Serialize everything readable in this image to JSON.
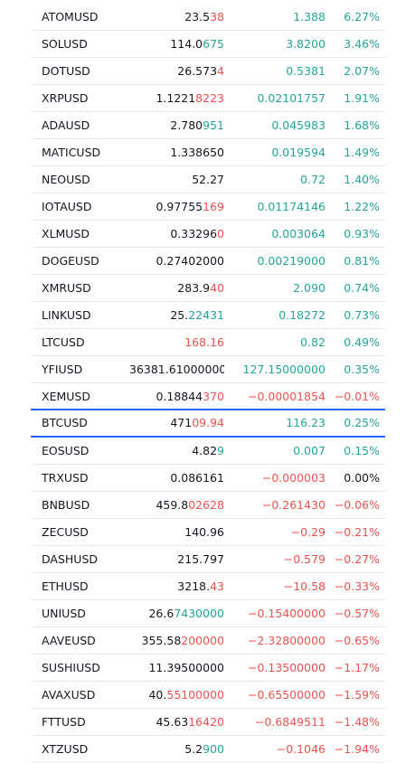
{
  "colors": {
    "up": "#26a69a",
    "down": "#ef5350",
    "neutral": "#131722",
    "highlight_border": "#2962ff"
  },
  "rows": [
    {
      "symbol": "ATOMUSD",
      "last_base": "23.5",
      "last_hl": "38",
      "hl_dir": "down",
      "change": "1.388",
      "change_pct": "6.27%",
      "dir": "up"
    },
    {
      "symbol": "SOLUSD",
      "last_base": "114.0",
      "last_hl": "675",
      "hl_dir": "up",
      "change": "3.8200",
      "change_pct": "3.46%",
      "dir": "up"
    },
    {
      "symbol": "DOTUSD",
      "last_base": "26.573",
      "last_hl": "4",
      "hl_dir": "down",
      "change": "0.5381",
      "change_pct": "2.07%",
      "dir": "up"
    },
    {
      "symbol": "XRPUSD",
      "last_base": "1.1221",
      "last_hl": "8223",
      "hl_dir": "down",
      "change": "0.02101757",
      "change_pct": "1.91%",
      "dir": "up"
    },
    {
      "symbol": "ADAUSD",
      "last_base": "2.780",
      "last_hl": "951",
      "hl_dir": "up",
      "change": "0.045983",
      "change_pct": "1.68%",
      "dir": "up"
    },
    {
      "symbol": "MATICUSD",
      "last_base": "1.338650",
      "last_hl": "",
      "hl_dir": "none",
      "change": "0.019594",
      "change_pct": "1.49%",
      "dir": "up"
    },
    {
      "symbol": "NEOUSD",
      "last_base": "52.27",
      "last_hl": "",
      "hl_dir": "none",
      "change": "0.72",
      "change_pct": "1.40%",
      "dir": "up"
    },
    {
      "symbol": "IOTAUSD",
      "last_base": "0.97755",
      "last_hl": "169",
      "hl_dir": "down",
      "change": "0.01174146",
      "change_pct": "1.22%",
      "dir": "up"
    },
    {
      "symbol": "XLMUSD",
      "last_base": "0.33296",
      "last_hl": "0",
      "hl_dir": "down",
      "change": "0.003064",
      "change_pct": "0.93%",
      "dir": "up"
    },
    {
      "symbol": "DOGEUSD",
      "last_base": "0.27402000",
      "last_hl": "",
      "hl_dir": "none",
      "change": "0.00219000",
      "change_pct": "0.81%",
      "dir": "up"
    },
    {
      "symbol": "XMRUSD",
      "last_base": "283.9",
      "last_hl": "40",
      "hl_dir": "down",
      "change": "2.090",
      "change_pct": "0.74%",
      "dir": "up"
    },
    {
      "symbol": "LINKUSD",
      "last_base": "25.",
      "last_hl": "22431",
      "hl_dir": "up",
      "change": "0.18272",
      "change_pct": "0.73%",
      "dir": "up"
    },
    {
      "symbol": "LTCUSD",
      "last_base": "",
      "last_hl": "168.16",
      "hl_dir": "down",
      "change": "0.82",
      "change_pct": "0.49%",
      "dir": "up"
    },
    {
      "symbol": "YFIUSD",
      "last_base": "36381.61000000",
      "last_hl": "",
      "hl_dir": "none",
      "change": "127.15000000",
      "change_pct": "0.35%",
      "dir": "up"
    },
    {
      "symbol": "XEMUSD",
      "last_base": "0.18844",
      "last_hl": "370",
      "hl_dir": "down",
      "change": "−0.00001854",
      "change_pct": "−0.01%",
      "dir": "down"
    },
    {
      "symbol": "BTCUSD",
      "last_base": "471",
      "last_hl": "09.94",
      "hl_dir": "down",
      "change": "116.23",
      "change_pct": "0.25%",
      "dir": "up",
      "selected": true
    },
    {
      "symbol": "EOSUSD",
      "last_base": "4.82",
      "last_hl": "9",
      "hl_dir": "up",
      "change": "0.007",
      "change_pct": "0.15%",
      "dir": "up"
    },
    {
      "symbol": "TRXUSD",
      "last_base": "0.086161",
      "last_hl": "",
      "hl_dir": "none",
      "change": "−0.000003",
      "change_pct": "0.00%",
      "dir": "down",
      "pct_dir": "neutral"
    },
    {
      "symbol": "BNBUSD",
      "last_base": "459.8",
      "last_hl": "02628",
      "hl_dir": "down",
      "change": "−0.261430",
      "change_pct": "−0.06%",
      "dir": "down"
    },
    {
      "symbol": "ZECUSD",
      "last_base": "140.96",
      "last_hl": "",
      "hl_dir": "none",
      "change": "−0.29",
      "change_pct": "−0.21%",
      "dir": "down"
    },
    {
      "symbol": "DASHUSD",
      "last_base": "215.797",
      "last_hl": "",
      "hl_dir": "none",
      "change": "−0.579",
      "change_pct": "−0.27%",
      "dir": "down"
    },
    {
      "symbol": "ETHUSD",
      "last_base": "3218.",
      "last_hl": "43",
      "hl_dir": "down",
      "change": "−10.58",
      "change_pct": "−0.33%",
      "dir": "down"
    },
    {
      "symbol": "UNIUSD",
      "last_base": "26.6",
      "last_hl": "7430000",
      "hl_dir": "up",
      "change": "−0.15400000",
      "change_pct": "−0.57%",
      "dir": "down"
    },
    {
      "symbol": "AAVEUSD",
      "last_base": "355.58",
      "last_hl": "200000",
      "hl_dir": "down",
      "change": "−2.32800000",
      "change_pct": "−0.65%",
      "dir": "down"
    },
    {
      "symbol": "SUSHIUSD",
      "last_base": "11.39500000",
      "last_hl": "",
      "hl_dir": "none",
      "change": "−0.13500000",
      "change_pct": "−1.17%",
      "dir": "down"
    },
    {
      "symbol": "AVAXUSD",
      "last_base": "40.",
      "last_hl": "55100000",
      "hl_dir": "down",
      "change": "−0.65500000",
      "change_pct": "−1.59%",
      "dir": "down"
    },
    {
      "symbol": "FTTUSD",
      "last_base": "45.63",
      "last_hl": "16420",
      "hl_dir": "down",
      "change": "−0.6849511",
      "change_pct": "−1.48%",
      "dir": "down"
    },
    {
      "symbol": "XTZUSD",
      "last_base": "5.2",
      "last_hl": "900",
      "hl_dir": "up",
      "change": "−0.1046",
      "change_pct": "−1.94%",
      "dir": "down"
    }
  ]
}
